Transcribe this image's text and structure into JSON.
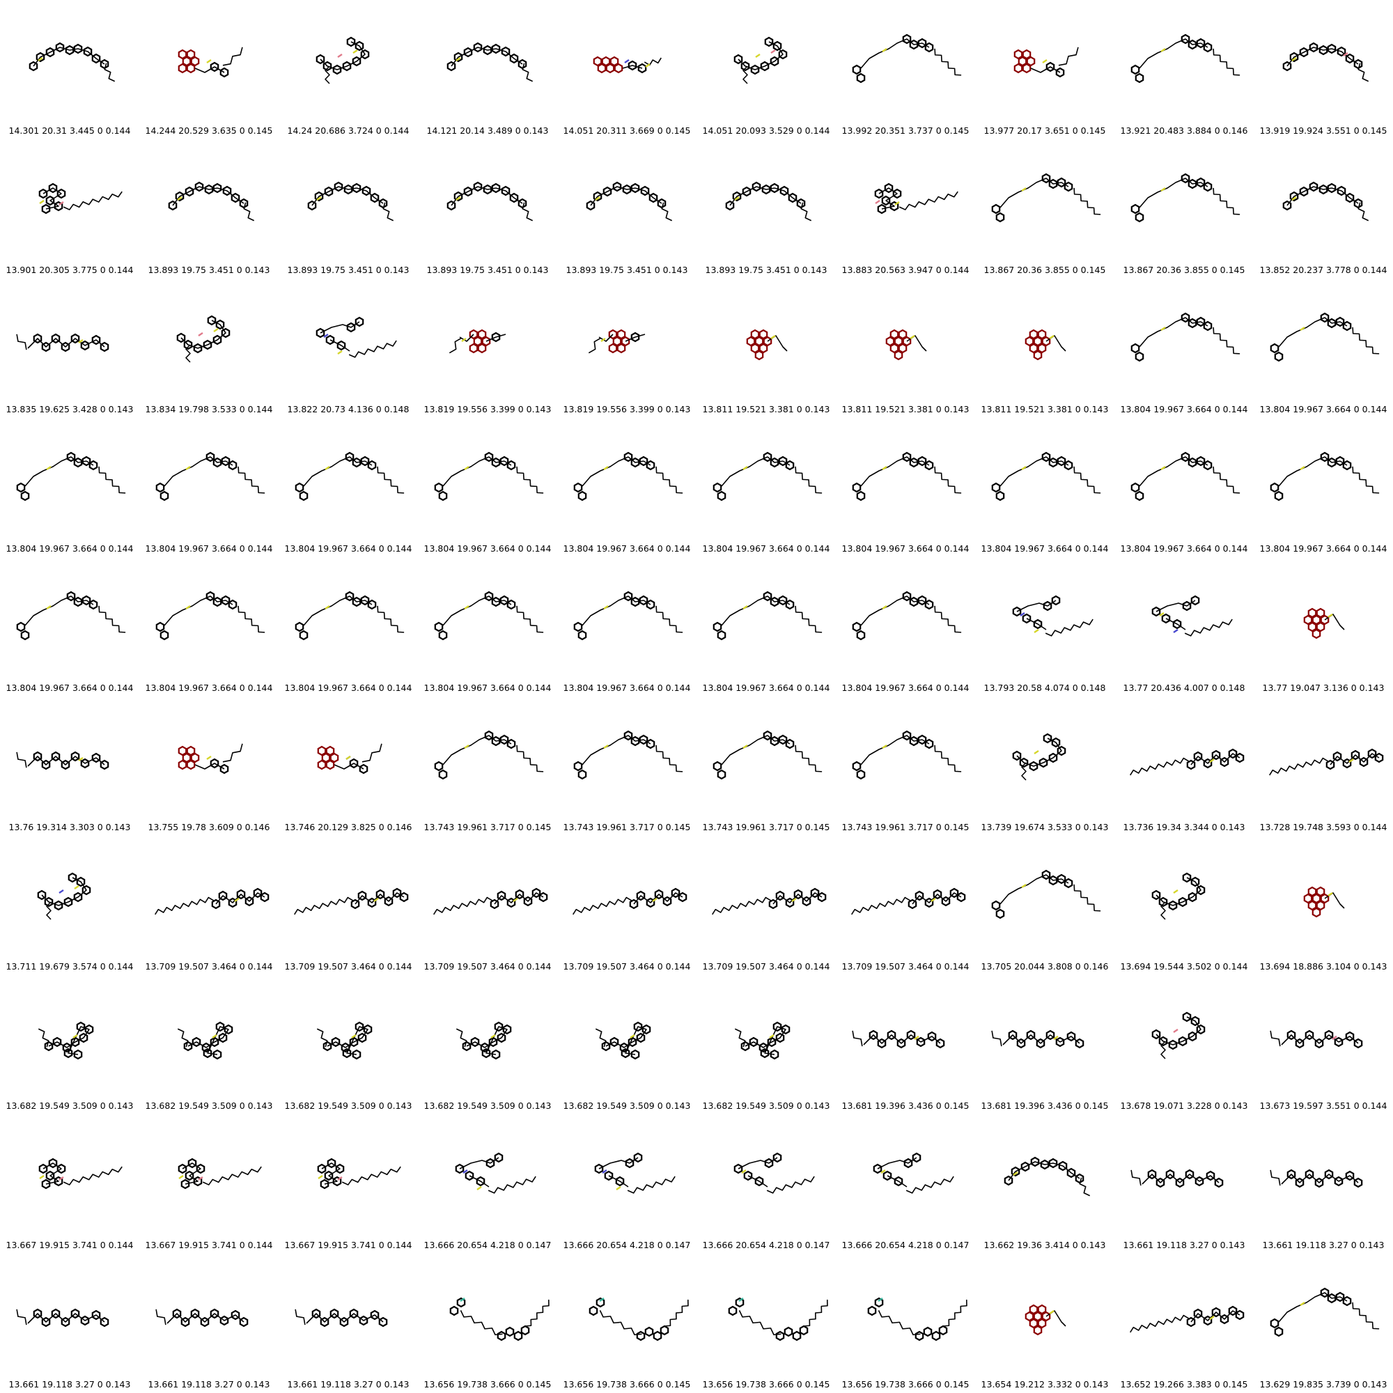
{
  "grid": {
    "molecules": [
      {
        "caption": "14.301 20.31 3.445 0 0.144",
        "shape": "arc",
        "accents": [
          "yellow"
        ],
        "tail": "gray"
      },
      {
        "caption": "14.244 20.529 3.635 0 0.145",
        "shape": "fused-cluster-left",
        "accents": [
          "yellow"
        ],
        "tail": "gray"
      },
      {
        "caption": "14.24 20.686 3.724 0 0.144",
        "shape": "folded",
        "accents": [
          "pink",
          "yellow"
        ],
        "tail": "gray"
      },
      {
        "caption": "14.121 20.14 3.489 0 0.143",
        "shape": "arc",
        "accents": [
          "yellow"
        ],
        "tail": "gray"
      },
      {
        "caption": "14.051 20.311 3.669 0 0.145",
        "shape": "fused-row",
        "accents": [
          "blue",
          "yellow"
        ],
        "tail": "gray"
      },
      {
        "caption": "14.051 20.093 3.529 0 0.144",
        "shape": "folded",
        "accents": [
          "yellow",
          "pink"
        ],
        "tail": "gray"
      },
      {
        "caption": "13.992 20.351 3.737 0 0.145",
        "shape": "peak-chain",
        "accents": [
          "yellow"
        ],
        "tail": "gray"
      },
      {
        "caption": "13.977 20.17 3.651 0 0.145",
        "shape": "fused-cluster-left",
        "accents": [
          "yellow"
        ],
        "tail": "gray"
      },
      {
        "caption": "13.921 20.483 3.884 0 0.146",
        "shape": "peak-chain",
        "accents": [
          "yellow"
        ],
        "tail": "teal"
      },
      {
        "caption": "13.919 19.924 3.551 0 0.145",
        "shape": "arc",
        "accents": [
          "yellow",
          "pink"
        ],
        "tail": "gray"
      },
      {
        "caption": "13.901 20.305 3.775 0 0.144",
        "shape": "cluster-tail",
        "accents": [
          "yellow",
          "pink"
        ],
        "tail": "gray"
      },
      {
        "caption": "13.893 19.75 3.451 0 0.143",
        "shape": "arc",
        "accents": [
          "yellow"
        ],
        "tail": "gray"
      },
      {
        "caption": "13.893 19.75 3.451 0 0.143",
        "shape": "arc",
        "accents": [
          "yellow"
        ],
        "tail": "gray"
      },
      {
        "caption": "13.893 19.75 3.451 0 0.143",
        "shape": "arc",
        "accents": [
          "yellow"
        ],
        "tail": "gray"
      },
      {
        "caption": "13.893 19.75 3.451 0 0.143",
        "shape": "arc",
        "accents": [
          "yellow"
        ],
        "tail": "gray"
      },
      {
        "caption": "13.893 19.75 3.451 0 0.143",
        "shape": "arc",
        "accents": [
          "yellow"
        ],
        "tail": "gray"
      },
      {
        "caption": "13.883 20.563 3.947 0 0.144",
        "shape": "cluster-tail",
        "accents": [
          "pink",
          "yellow"
        ],
        "tail": "gray"
      },
      {
        "caption": "13.867 20.36 3.855 0 0.145",
        "shape": "peak-chain",
        "accents": [
          "yellow"
        ],
        "tail": "teal"
      },
      {
        "caption": "13.867 20.36 3.855 0 0.145",
        "shape": "peak-chain",
        "accents": [
          "yellow"
        ],
        "tail": "teal"
      },
      {
        "caption": "13.852 20.237 3.778 0 0.144",
        "shape": "arc",
        "accents": [
          "yellow"
        ],
        "tail": "gray"
      },
      {
        "caption": "13.835 19.625 3.428 0 0.143",
        "shape": "wave",
        "accents": [
          "yellow"
        ],
        "tail": "gray"
      },
      {
        "caption": "13.834 19.798 3.533 0 0.144",
        "shape": "folded",
        "accents": [
          "pink",
          "yellow"
        ],
        "tail": "gray"
      },
      {
        "caption": "13.822 20.73 4.136 0 0.148",
        "shape": "double-chain",
        "accents": [
          "blue",
          "yellow"
        ],
        "tail": "teal"
      },
      {
        "caption": "13.819 19.556 3.399 0 0.143",
        "shape": "fused-cluster-right",
        "accents": [
          "yellow"
        ],
        "tail": "gray"
      },
      {
        "caption": "13.819 19.556 3.399 0 0.143",
        "shape": "fused-cluster-right",
        "accents": [
          "yellow"
        ],
        "tail": "gray"
      },
      {
        "caption": "13.811 19.521 3.381 0 0.143",
        "shape": "fused-compact",
        "accents": [
          "yellow"
        ],
        "tail": "gray"
      },
      {
        "caption": "13.811 19.521 3.381 0 0.143",
        "shape": "fused-compact",
        "accents": [
          "yellow"
        ],
        "tail": "gray"
      },
      {
        "caption": "13.811 19.521 3.381 0 0.143",
        "shape": "fused-compact",
        "accents": [
          "yellow"
        ],
        "tail": "gray"
      },
      {
        "caption": "13.804 19.967 3.664 0 0.144",
        "shape": "peak-chain",
        "accents": [
          "yellow"
        ],
        "tail": "teal"
      },
      {
        "caption": "13.804 19.967 3.664 0 0.144",
        "shape": "peak-chain",
        "accents": [
          "yellow"
        ],
        "tail": "teal"
      },
      {
        "caption": "13.804 19.967 3.664 0 0.144",
        "shape": "peak-chain",
        "accents": [
          "yellow"
        ],
        "tail": "teal"
      },
      {
        "caption": "13.804 19.967 3.664 0 0.144",
        "shape": "peak-chain",
        "accents": [
          "yellow"
        ],
        "tail": "teal"
      },
      {
        "caption": "13.804 19.967 3.664 0 0.144",
        "shape": "peak-chain",
        "accents": [
          "yellow"
        ],
        "tail": "teal"
      },
      {
        "caption": "13.804 19.967 3.664 0 0.144",
        "shape": "peak-chain",
        "accents": [
          "yellow"
        ],
        "tail": "teal"
      },
      {
        "caption": "13.804 19.967 3.664 0 0.144",
        "shape": "peak-chain",
        "accents": [
          "yellow"
        ],
        "tail": "teal"
      },
      {
        "caption": "13.804 19.967 3.664 0 0.144",
        "shape": "peak-chain",
        "accents": [
          "yellow"
        ],
        "tail": "teal"
      },
      {
        "caption": "13.804 19.967 3.664 0 0.144",
        "shape": "peak-chain",
        "accents": [
          "yellow"
        ],
        "tail": "teal"
      },
      {
        "caption": "13.804 19.967 3.664 0 0.144",
        "shape": "peak-chain",
        "accents": [
          "yellow"
        ],
        "tail": "teal"
      },
      {
        "caption": "13.804 19.967 3.664 0 0.144",
        "shape": "peak-chain",
        "accents": [
          "yellow"
        ],
        "tail": "teal"
      },
      {
        "caption": "13.804 19.967 3.664 0 0.144",
        "shape": "peak-chain",
        "accents": [
          "yellow"
        ],
        "tail": "teal"
      },
      {
        "caption": "13.804 19.967 3.664 0 0.144",
        "shape": "peak-chain",
        "accents": [
          "yellow"
        ],
        "tail": "teal"
      },
      {
        "caption": "13.804 19.967 3.664 0 0.144",
        "shape": "peak-chain",
        "accents": [
          "yellow"
        ],
        "tail": "teal"
      },
      {
        "caption": "13.804 19.967 3.664 0 0.144",
        "shape": "peak-chain",
        "accents": [
          "yellow"
        ],
        "tail": "teal"
      },
      {
        "caption": "13.804 19.967 3.664 0 0.144",
        "shape": "peak-chain",
        "accents": [
          "yellow"
        ],
        "tail": "teal"
      },
      {
        "caption": "13.804 19.967 3.664 0 0.144",
        "shape": "peak-chain",
        "accents": [
          "yellow"
        ],
        "tail": "teal"
      },
      {
        "caption": "13.804 19.967 3.664 0 0.144",
        "shape": "peak-chain",
        "accents": [
          "yellow"
        ],
        "tail": "teal"
      },
      {
        "caption": "13.804 19.967 3.664 0 0.144",
        "shape": "peak-chain",
        "accents": [
          "yellow"
        ],
        "tail": "teal"
      },
      {
        "caption": "13.793 20.58 4.074 0 0.148",
        "shape": "double-chain",
        "accents": [
          "blue",
          "yellow"
        ],
        "tail": "teal"
      },
      {
        "caption": "13.77 20.436 4.007 0 0.148",
        "shape": "double-chain",
        "accents": [
          "yellow",
          "blue"
        ],
        "tail": "teal"
      },
      {
        "caption": "13.77 19.047 3.136 0 0.143",
        "shape": "fused-compact",
        "accents": [
          "yellow"
        ],
        "tail": "gray"
      },
      {
        "caption": "13.76 19.314 3.303 0 0.143",
        "shape": "wave",
        "accents": [
          "yellow"
        ],
        "tail": "gray"
      },
      {
        "caption": "13.755 19.78 3.609 0 0.146",
        "shape": "fused-cluster-left",
        "accents": [
          "yellow"
        ],
        "tail": "gray"
      },
      {
        "caption": "13.746 20.129 3.825 0 0.146",
        "shape": "fused-cluster-left",
        "accents": [
          "blue",
          "yellow"
        ],
        "tail": "gray"
      },
      {
        "caption": "13.743 19.961 3.717 0 0.145",
        "shape": "peak-chain",
        "accents": [
          "yellow"
        ],
        "tail": "teal"
      },
      {
        "caption": "13.743 19.961 3.717 0 0.145",
        "shape": "peak-chain",
        "accents": [
          "yellow"
        ],
        "tail": "teal"
      },
      {
        "caption": "13.743 19.961 3.717 0 0.145",
        "shape": "peak-chain",
        "accents": [
          "yellow"
        ],
        "tail": "teal"
      },
      {
        "caption": "13.743 19.961 3.717 0 0.145",
        "shape": "peak-chain",
        "accents": [
          "yellow"
        ],
        "tail": "teal"
      },
      {
        "caption": "13.739 19.674 3.533 0 0.143",
        "shape": "folded",
        "accents": [
          "yellow"
        ],
        "tail": "gray"
      },
      {
        "caption": "13.736 19.34 3.344 0 0.143",
        "shape": "long-tail-left",
        "accents": [
          "yellow"
        ],
        "tail": "gray"
      },
      {
        "caption": "13.728 19.748 3.593 0 0.144",
        "shape": "long-tail-left",
        "accents": [
          "pink",
          "yellow"
        ],
        "tail": "gray"
      },
      {
        "caption": "13.711 19.679 3.574 0 0.144",
        "shape": "folded",
        "accents": [
          "blue",
          "yellow"
        ],
        "tail": "gray"
      },
      {
        "caption": "13.709 19.507 3.464 0 0.144",
        "shape": "long-tail-left",
        "accents": [
          "yellow"
        ],
        "tail": "gray"
      },
      {
        "caption": "13.709 19.507 3.464 0 0.144",
        "shape": "long-tail-left",
        "accents": [
          "yellow"
        ],
        "tail": "gray"
      },
      {
        "caption": "13.709 19.507 3.464 0 0.144",
        "shape": "long-tail-left",
        "accents": [
          "yellow"
        ],
        "tail": "gray"
      },
      {
        "caption": "13.709 19.507 3.464 0 0.144",
        "shape": "long-tail-left",
        "accents": [
          "yellow"
        ],
        "tail": "gray"
      },
      {
        "caption": "13.709 19.507 3.464 0 0.144",
        "shape": "long-tail-left",
        "accents": [
          "yellow"
        ],
        "tail": "gray"
      },
      {
        "caption": "13.709 19.507 3.464 0 0.144",
        "shape": "long-tail-left",
        "accents": [
          "yellow"
        ],
        "tail": "gray"
      },
      {
        "caption": "13.705 20.044 3.808 0 0.146",
        "shape": "peak-chain",
        "accents": [
          "yellow"
        ],
        "tail": "teal"
      },
      {
        "caption": "13.694 19.544 3.502 0 0.144",
        "shape": "folded",
        "accents": [
          "yellow"
        ],
        "tail": "gray"
      },
      {
        "caption": "13.694 18.886 3.104 0 0.143",
        "shape": "fused-compact",
        "accents": [
          "yellow"
        ],
        "tail": "gray"
      },
      {
        "caption": "13.682 19.549 3.509 0 0.143",
        "shape": "cluster-up-tail",
        "accents": [
          "yellow"
        ],
        "tail": "gray"
      },
      {
        "caption": "13.682 19.549 3.509 0 0.143",
        "shape": "cluster-up-tail",
        "accents": [
          "yellow"
        ],
        "tail": "gray"
      },
      {
        "caption": "13.682 19.549 3.509 0 0.143",
        "shape": "cluster-up-tail",
        "accents": [
          "yellow"
        ],
        "tail": "gray"
      },
      {
        "caption": "13.682 19.549 3.509 0 0.143",
        "shape": "cluster-up-tail",
        "accents": [
          "yellow"
        ],
        "tail": "gray"
      },
      {
        "caption": "13.682 19.549 3.509 0 0.143",
        "shape": "cluster-up-tail",
        "accents": [
          "yellow"
        ],
        "tail": "gray"
      },
      {
        "caption": "13.682 19.549 3.509 0 0.143",
        "shape": "cluster-up-tail",
        "accents": [
          "yellow"
        ],
        "tail": "gray"
      },
      {
        "caption": "13.681 19.396 3.436 0 0.145",
        "shape": "wave",
        "accents": [
          "pink",
          "yellow"
        ],
        "tail": "gray"
      },
      {
        "caption": "13.681 19.396 3.436 0 0.145",
        "shape": "wave",
        "accents": [
          "pink",
          "yellow"
        ],
        "tail": "gray"
      },
      {
        "caption": "13.678 19.071 3.228 0 0.143",
        "shape": "folded",
        "accents": [
          "pink"
        ],
        "tail": "gray"
      },
      {
        "caption": "13.673 19.597 3.551 0 0.144",
        "shape": "wave",
        "accents": [
          "blue",
          "pink"
        ],
        "tail": "gray"
      },
      {
        "caption": "13.667 19.915 3.741 0 0.144",
        "shape": "cluster-tail",
        "accents": [
          "yellow",
          "pink"
        ],
        "tail": "gray"
      },
      {
        "caption": "13.667 19.915 3.741 0 0.144",
        "shape": "cluster-tail",
        "accents": [
          "yellow",
          "pink"
        ],
        "tail": "gray"
      },
      {
        "caption": "13.667 19.915 3.741 0 0.144",
        "shape": "cluster-tail",
        "accents": [
          "yellow",
          "pink"
        ],
        "tail": "gray"
      },
      {
        "caption": "13.666 20.654 4.218 0 0.147",
        "shape": "double-chain",
        "accents": [
          "blue",
          "yellow"
        ],
        "tail": "teal"
      },
      {
        "caption": "13.666 20.654 4.218 0 0.147",
        "shape": "double-chain",
        "accents": [
          "blue",
          "yellow"
        ],
        "tail": "teal"
      },
      {
        "caption": "13.666 20.654 4.218 0 0.147",
        "shape": "double-chain",
        "accents": [
          "yellow"
        ],
        "tail": "teal"
      },
      {
        "caption": "13.666 20.654 4.218 0 0.147",
        "shape": "double-chain",
        "accents": [
          "yellow"
        ],
        "tail": "teal"
      },
      {
        "caption": "13.662 19.36 3.414 0 0.143",
        "shape": "arc",
        "accents": [
          "yellow"
        ],
        "tail": "gray"
      },
      {
        "caption": "13.661 19.118 3.27 0 0.143",
        "shape": "wave",
        "accents": [],
        "tail": "gray"
      },
      {
        "caption": "13.661 19.118 3.27 0 0.143",
        "shape": "wave",
        "accents": [],
        "tail": "gray"
      },
      {
        "caption": "13.661 19.118 3.27 0 0.143",
        "shape": "wave",
        "accents": [],
        "tail": "gray"
      },
      {
        "caption": "13.661 19.118 3.27 0 0.143",
        "shape": "wave",
        "accents": [],
        "tail": "gray"
      },
      {
        "caption": "13.661 19.118 3.27 0 0.143",
        "shape": "wave",
        "accents": [],
        "tail": "gray"
      },
      {
        "caption": "13.656 19.738 3.666 0 0.145",
        "shape": "valley-chain",
        "accents": [
          "teal"
        ],
        "tail": "teal"
      },
      {
        "caption": "13.656 19.738 3.666 0 0.145",
        "shape": "valley-chain",
        "accents": [
          "teal"
        ],
        "tail": "teal"
      },
      {
        "caption": "13.656 19.738 3.666 0 0.145",
        "shape": "valley-chain",
        "accents": [
          "teal"
        ],
        "tail": "teal"
      },
      {
        "caption": "13.656 19.738 3.666 0 0.145",
        "shape": "valley-chain",
        "accents": [
          "teal"
        ],
        "tail": "teal"
      },
      {
        "caption": "13.654 19.212 3.332 0 0.143",
        "shape": "fused-compact",
        "accents": [
          "yellow"
        ],
        "tail": "gray"
      },
      {
        "caption": "13.652 19.266 3.383 0 0.145",
        "shape": "long-tail-left",
        "accents": [
          "yellow"
        ],
        "tail": "gray"
      },
      {
        "caption": "13.629 19.835 3.739 0 0.143",
        "shape": "peak-chain",
        "accents": [
          "yellow"
        ],
        "tail": "teal"
      }
    ]
  },
  "colors": {
    "bond": "#000000",
    "yellow": "#d6d62a",
    "pink": "#e07a8a",
    "blue": "#4a4ad0",
    "teal": "#3cb9a0",
    "gray": "#000000",
    "fused_ring": "#8b0000",
    "caption": "#000000"
  }
}
